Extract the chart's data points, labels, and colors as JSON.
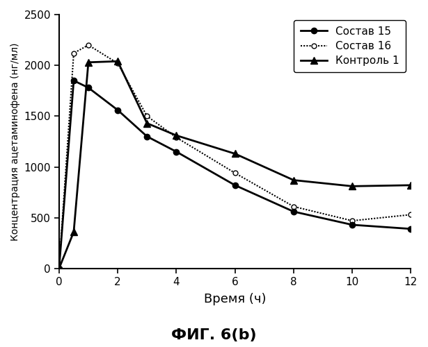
{
  "title": "ФИГ. 6(b)",
  "xlabel": "Время (ч)",
  "ylabel": "Концентрация ацетаминофена (нг/мл)",
  "xlim": [
    0,
    12
  ],
  "ylim": [
    0,
    2500
  ],
  "xticks": [
    0,
    2,
    4,
    6,
    8,
    10,
    12
  ],
  "yticks": [
    0,
    500,
    1000,
    1500,
    2000,
    2500
  ],
  "series": [
    {
      "label": "Состав 15",
      "x": [
        0,
        0.5,
        1,
        2,
        3,
        4,
        6,
        8,
        10,
        12
      ],
      "y": [
        0,
        1850,
        1780,
        1560,
        1300,
        1150,
        820,
        560,
        430,
        390
      ],
      "color": "#000000",
      "linestyle": "-",
      "marker": "o",
      "markersize": 6,
      "linewidth": 2.0,
      "markerfacecolor": "#000000",
      "zorder": 3
    },
    {
      "label": "Состав 16",
      "x": [
        0,
        0.5,
        1,
        2,
        3,
        4,
        6,
        8,
        10,
        12
      ],
      "y": [
        0,
        2120,
        2200,
        2020,
        1500,
        1290,
        940,
        610,
        470,
        530
      ],
      "color": "#000000",
      "linestyle": "dotted",
      "marker": "o",
      "markersize": 5,
      "linewidth": 1.5,
      "markerfacecolor": "#ffffff",
      "zorder": 2
    },
    {
      "label": "Контроль 1",
      "x": [
        0,
        0.5,
        1,
        2,
        3,
        4,
        6,
        8,
        10,
        12
      ],
      "y": [
        0,
        360,
        2030,
        2040,
        1430,
        1310,
        1130,
        870,
        810,
        820
      ],
      "color": "#000000",
      "linestyle": "-",
      "marker": "^",
      "markersize": 7,
      "linewidth": 2.0,
      "markerfacecolor": "#000000",
      "zorder": 3
    }
  ],
  "legend_loc": "upper right",
  "background_color": "#ffffff",
  "grid": false,
  "title_fontsize": 16,
  "xlabel_fontsize": 13,
  "ylabel_fontsize": 10,
  "tick_fontsize": 11,
  "legend_fontsize": 11
}
